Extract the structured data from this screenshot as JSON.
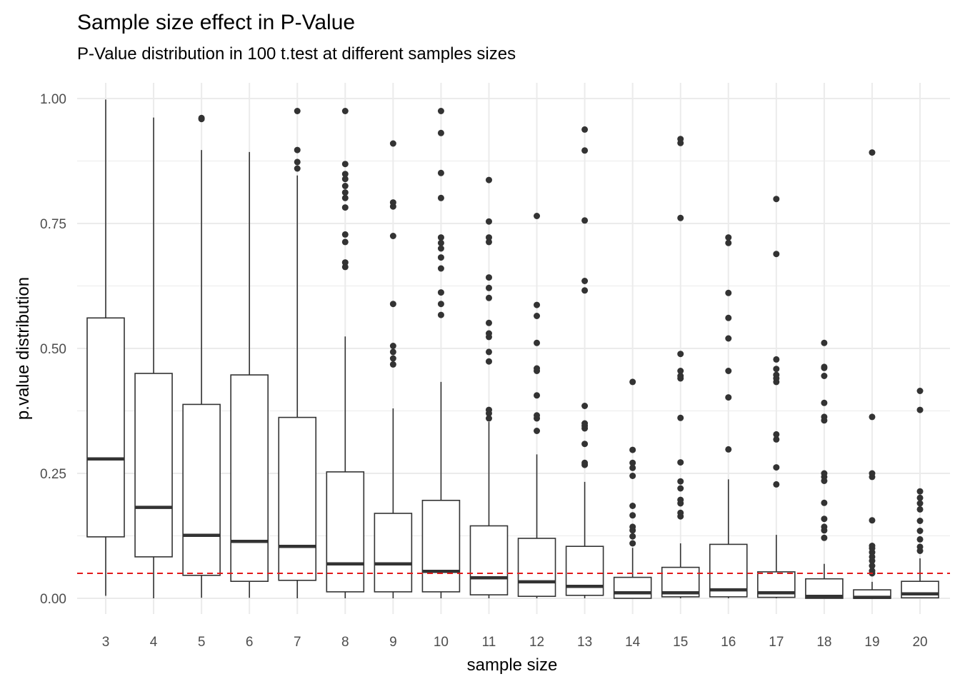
{
  "chart_data": {
    "type": "box",
    "title": "Sample size effect in P-Value",
    "subtitle": "P-Value distribution in 100 t.test at different samples sizes",
    "xlabel": "sample size",
    "ylabel": "p.value distribution",
    "ylim": [
      -0.05,
      1.05
    ],
    "yticks": [
      "0.00",
      "0.25",
      "0.50",
      "0.75",
      "1.00"
    ],
    "grid": true,
    "reference_line": {
      "y": 0.05,
      "color": "#e31a1c",
      "style": "dashed"
    },
    "colors": {
      "box": "#333333",
      "grid": "#ebebeb",
      "outlier": "#333333"
    },
    "categories": [
      "3",
      "4",
      "5",
      "6",
      "7",
      "8",
      "9",
      "10",
      "11",
      "12",
      "13",
      "14",
      "15",
      "16",
      "17",
      "18",
      "19",
      "20"
    ],
    "boxes": [
      {
        "lower_whisker": 0.005,
        "q1": 0.123,
        "median": 0.279,
        "q3": 0.561,
        "upper_whisker": 0.998,
        "outliers": []
      },
      {
        "lower_whisker": 0.0,
        "q1": 0.083,
        "median": 0.182,
        "q3": 0.45,
        "upper_whisker": 0.962,
        "outliers": []
      },
      {
        "lower_whisker": 0.001,
        "q1": 0.046,
        "median": 0.126,
        "q3": 0.388,
        "upper_whisker": 0.897,
        "outliers": [
          0.959,
          0.961
        ]
      },
      {
        "lower_whisker": 0.001,
        "q1": 0.034,
        "median": 0.114,
        "q3": 0.447,
        "upper_whisker": 0.893,
        "outliers": []
      },
      {
        "lower_whisker": 0.0,
        "q1": 0.036,
        "median": 0.104,
        "q3": 0.362,
        "upper_whisker": 0.846,
        "outliers": [
          0.86,
          0.873,
          0.897,
          0.975
        ]
      },
      {
        "lower_whisker": 0.0,
        "q1": 0.013,
        "median": 0.069,
        "q3": 0.253,
        "upper_whisker": 0.524,
        "outliers": [
          0.663,
          0.672,
          0.713,
          0.728,
          0.782,
          0.801,
          0.812,
          0.825,
          0.839,
          0.849,
          0.869,
          0.975
        ]
      },
      {
        "lower_whisker": 0.0,
        "q1": 0.013,
        "median": 0.069,
        "q3": 0.17,
        "upper_whisker": 0.38,
        "outliers": [
          0.468,
          0.48,
          0.493,
          0.505,
          0.589,
          0.725,
          0.784,
          0.792,
          0.91
        ]
      },
      {
        "lower_whisker": 0.0,
        "q1": 0.013,
        "median": 0.054,
        "q3": 0.196,
        "upper_whisker": 0.433,
        "outliers": [
          0.567,
          0.589,
          0.612,
          0.66,
          0.682,
          0.7,
          0.711,
          0.722,
          0.801,
          0.851,
          0.931,
          0.975
        ]
      },
      {
        "lower_whisker": 0.0,
        "q1": 0.007,
        "median": 0.041,
        "q3": 0.145,
        "upper_whisker": 0.353,
        "outliers": [
          0.36,
          0.37,
          0.377,
          0.474,
          0.493,
          0.523,
          0.53,
          0.551,
          0.601,
          0.621,
          0.642,
          0.713,
          0.722,
          0.754,
          0.837
        ]
      },
      {
        "lower_whisker": 0.0,
        "q1": 0.004,
        "median": 0.033,
        "q3": 0.12,
        "upper_whisker": 0.288,
        "outliers": [
          0.335,
          0.36,
          0.366,
          0.406,
          0.455,
          0.46,
          0.511,
          0.565,
          0.587,
          0.765
        ]
      },
      {
        "lower_whisker": 0.0,
        "q1": 0.006,
        "median": 0.024,
        "q3": 0.104,
        "upper_whisker": 0.233,
        "outliers": [
          0.267,
          0.271,
          0.309,
          0.34,
          0.345,
          0.35,
          0.385,
          0.616,
          0.635,
          0.756,
          0.896,
          0.938
        ]
      },
      {
        "lower_whisker": 0.0,
        "q1": 0.0,
        "median": 0.011,
        "q3": 0.042,
        "upper_whisker": 0.101,
        "outliers": [
          0.11,
          0.124,
          0.136,
          0.143,
          0.166,
          0.185,
          0.245,
          0.261,
          0.271,
          0.297,
          0.433
        ]
      },
      {
        "lower_whisker": 0.0,
        "q1": 0.003,
        "median": 0.011,
        "q3": 0.062,
        "upper_whisker": 0.11,
        "outliers": [
          0.164,
          0.171,
          0.19,
          0.197,
          0.22,
          0.234,
          0.272,
          0.361,
          0.44,
          0.445,
          0.455,
          0.489,
          0.761,
          0.911,
          0.919
        ]
      },
      {
        "lower_whisker": 0.0,
        "q1": 0.003,
        "median": 0.017,
        "q3": 0.108,
        "upper_whisker": 0.238,
        "outliers": [
          0.298,
          0.402,
          0.455,
          0.52,
          0.561,
          0.611,
          0.711,
          0.722
        ]
      },
      {
        "lower_whisker": 0.0,
        "q1": 0.002,
        "median": 0.011,
        "q3": 0.053,
        "upper_whisker": 0.127,
        "outliers": [
          0.228,
          0.262,
          0.318,
          0.328,
          0.433,
          0.44,
          0.447,
          0.459,
          0.478,
          0.689,
          0.799
        ]
      },
      {
        "lower_whisker": 0.0,
        "q1": 0.0,
        "median": 0.004,
        "q3": 0.039,
        "upper_whisker": 0.069,
        "outliers": [
          0.121,
          0.136,
          0.143,
          0.159,
          0.191,
          0.235,
          0.243,
          0.25,
          0.356,
          0.363,
          0.391,
          0.445,
          0.461,
          0.463,
          0.511
        ]
      },
      {
        "lower_whisker": 0.0,
        "q1": 0.0,
        "median": 0.002,
        "q3": 0.017,
        "upper_whisker": 0.033,
        "outliers": [
          0.05,
          0.055,
          0.065,
          0.075,
          0.083,
          0.092,
          0.1,
          0.105,
          0.156,
          0.243,
          0.25,
          0.363,
          0.892
        ]
      },
      {
        "lower_whisker": 0.0,
        "q1": 0.001,
        "median": 0.009,
        "q3": 0.034,
        "upper_whisker": 0.08,
        "outliers": [
          0.095,
          0.103,
          0.118,
          0.135,
          0.155,
          0.178,
          0.19,
          0.201,
          0.214,
          0.377,
          0.415
        ]
      }
    ]
  }
}
